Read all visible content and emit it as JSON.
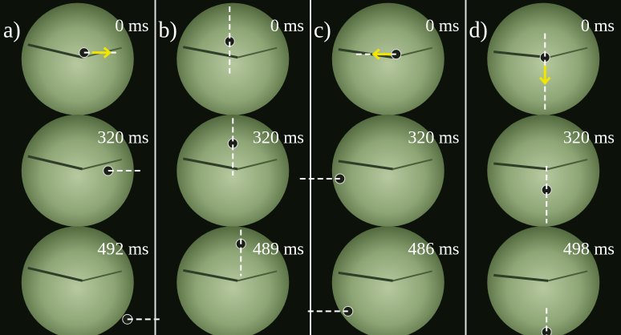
{
  "panels": [
    {
      "label": "a)",
      "frames": [
        "0 ms",
        "320 ms",
        "492 ms"
      ]
    },
    {
      "label": "b)",
      "frames": [
        "0 ms",
        "320 ms",
        "489 ms"
      ]
    },
    {
      "label": "c)",
      "frames": [
        "0 ms",
        "320 ms",
        "486 ms"
      ]
    },
    {
      "label": "d)",
      "frames": [
        "0 ms",
        "320 ms",
        "498 ms"
      ]
    }
  ]
}
